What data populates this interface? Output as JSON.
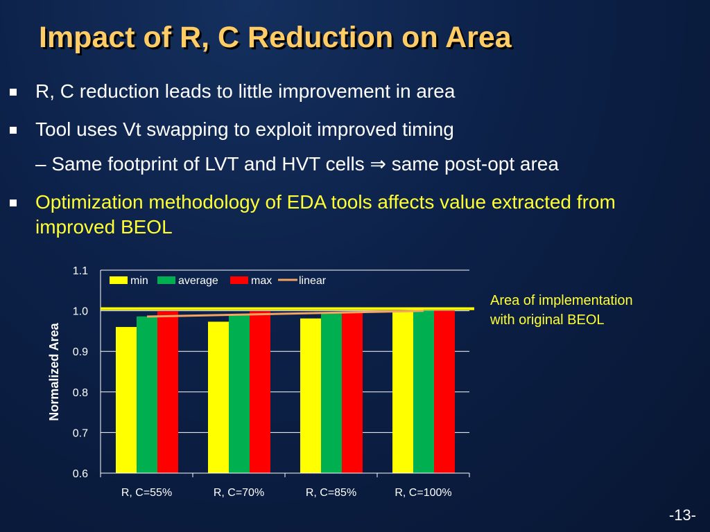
{
  "slide": {
    "title": "Impact of R, C Reduction on Area",
    "bullets": [
      {
        "text": "R, C reduction leads to little improvement in area"
      },
      {
        "text": "Tool uses Vt swapping to exploit improved timing"
      },
      {
        "text": "Optimization methodology of EDA tools affects value extracted from improved BEOL"
      }
    ],
    "sub_bullet": "– Same footprint of LVT and HVT cells ⇒ same post-opt area",
    "note_line1": "Area of implementation",
    "note_line2": "with original BEOL",
    "page_number": "-13-"
  },
  "chart_data": {
    "type": "bar",
    "title": "",
    "xlabel": "",
    "ylabel": "Normalized Area",
    "ylim": [
      0.6,
      1.1
    ],
    "yticks": [
      "0.6",
      "0.7",
      "0.8",
      "0.9",
      "1.0",
      "1.1"
    ],
    "categories": [
      "R, C=55%",
      "R, C=70%",
      "R, C=85%",
      "R, C=100%"
    ],
    "series": [
      {
        "name": "min",
        "color": "#ffff00",
        "values": [
          0.96,
          0.973,
          0.981,
          1.0
        ]
      },
      {
        "name": "average",
        "color": "#00b050",
        "values": [
          0.986,
          0.99,
          0.995,
          1.0
        ]
      },
      {
        "name": "max",
        "color": "#ff0000",
        "values": [
          0.999,
          0.999,
          0.998,
          1.0
        ]
      }
    ],
    "trendline": {
      "name": "linear",
      "color": "#f4a460",
      "values": [
        0.986,
        0.99,
        0.995,
        1.0
      ]
    },
    "reference_line": {
      "value": 1.0,
      "color": "#ffff00"
    },
    "legend": "top-left, inside plot",
    "grid": true,
    "colors": {
      "axis_text": "#ffffff",
      "grid": "#ffffff"
    }
  }
}
